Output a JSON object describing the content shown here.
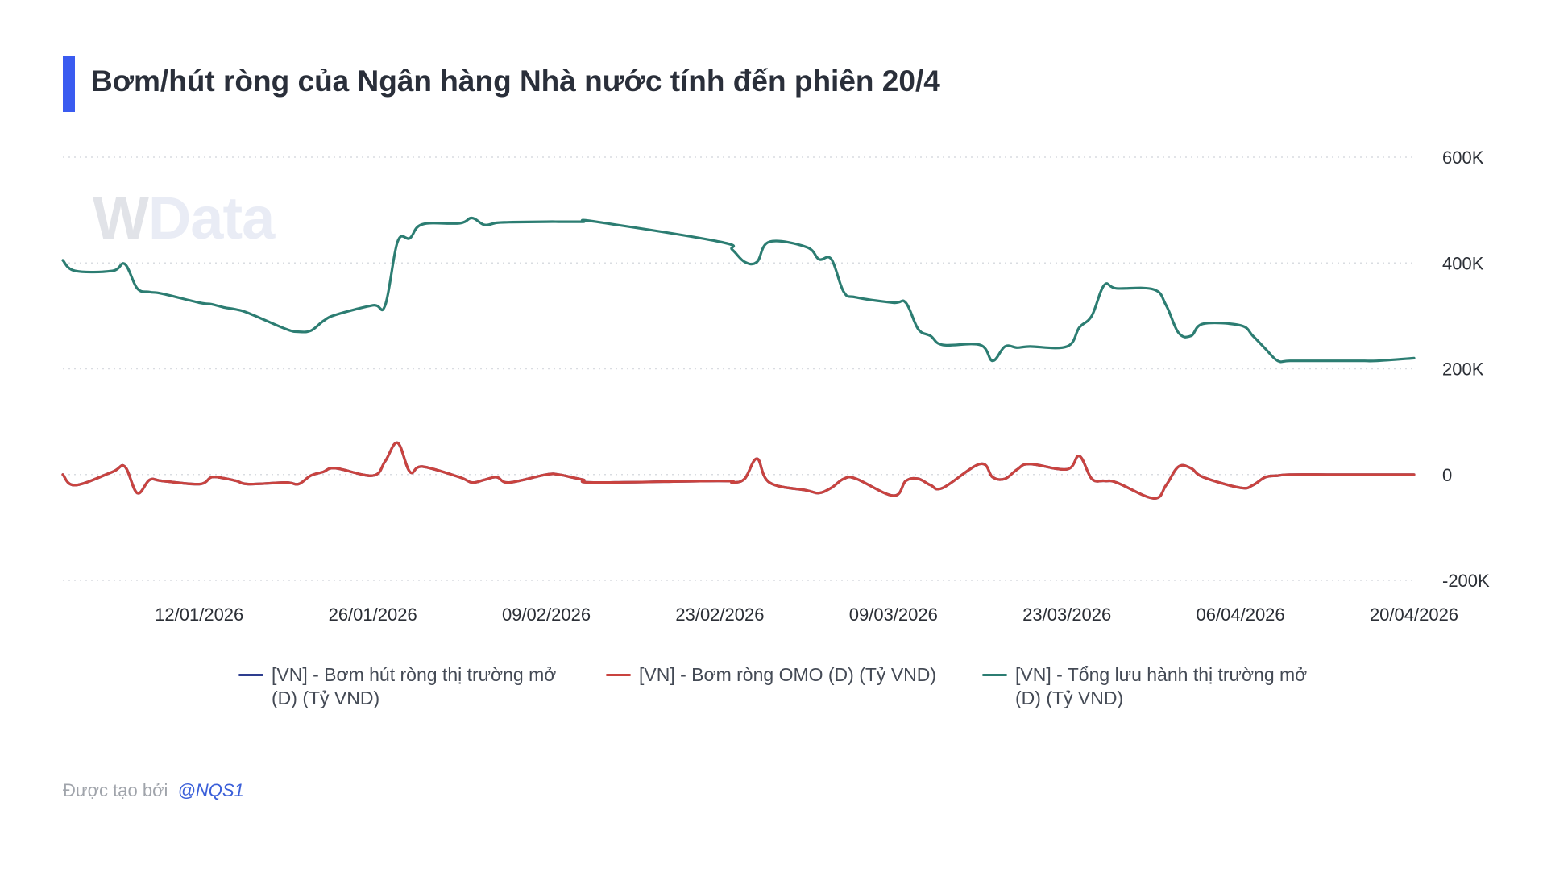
{
  "title": "Bơm/hút ròng của Ngân hàng Nhà nước tính đến phiên 20/4",
  "accent_color": "#3a5bf0",
  "watermark": {
    "w": "W",
    "rest": "Data"
  },
  "footer": {
    "prefix": "Được tạo bởi",
    "handle": "@NQS1"
  },
  "legend": [
    {
      "line1": "[VN] - Bơm hút ròng thị trường mở",
      "line2": "(D) (Tỷ VND)",
      "color": "#2e3e8f"
    },
    {
      "line1": "[VN] - Bơm ròng OMO (D) (Tỷ VND)",
      "line2": "",
      "color": "#c9433f"
    },
    {
      "line1": "[VN] - Tổng lưu hành thị trường mở",
      "line2": "(D) (Tỷ VND)",
      "color": "#2c7d72"
    }
  ],
  "chart_data": {
    "type": "line",
    "title": "Bơm/hút ròng của Ngân hàng Nhà nước tính đến phiên 20/4",
    "xlabel": "",
    "ylabel": "",
    "grid": true,
    "legend_position": "bottom",
    "y_axis_side": "right",
    "ylim": [
      -200000,
      600000
    ],
    "y_ticks": [
      {
        "value": 600000,
        "label": "600K"
      },
      {
        "value": 400000,
        "label": "400K"
      },
      {
        "value": 200000,
        "label": "200K"
      },
      {
        "value": 0,
        "label": "0"
      },
      {
        "value": -200000,
        "label": "-200K"
      }
    ],
    "x_range": [
      "2026-01-01",
      "2026-04-20"
    ],
    "x_ticks": [
      {
        "date": "2026-01-12",
        "label": "12/01/2026"
      },
      {
        "date": "2026-01-26",
        "label": "26/01/2026"
      },
      {
        "date": "2026-02-09",
        "label": "09/02/2026"
      },
      {
        "date": "2026-02-23",
        "label": "23/02/2026"
      },
      {
        "date": "2026-03-09",
        "label": "09/03/2026"
      },
      {
        "date": "2026-03-23",
        "label": "23/03/2026"
      },
      {
        "date": "2026-04-06",
        "label": "06/04/2026"
      },
      {
        "date": "2026-04-20",
        "label": "20/04/2026"
      }
    ],
    "series": [
      {
        "name": "[VN] - Bơm hút ròng thị trường mở (D) (Tỷ VND)",
        "color": "#2e3e8f",
        "x": [
          "2026-01-01",
          "2026-01-02",
          "2026-01-05",
          "2026-01-06",
          "2026-01-07",
          "2026-01-08",
          "2026-01-09",
          "2026-01-12",
          "2026-01-13",
          "2026-01-14",
          "2026-01-15",
          "2026-01-16",
          "2026-01-19",
          "2026-01-20",
          "2026-01-21",
          "2026-01-22",
          "2026-01-23",
          "2026-01-26",
          "2026-01-27",
          "2026-01-28",
          "2026-01-29",
          "2026-01-30",
          "2026-02-02",
          "2026-02-03",
          "2026-02-04",
          "2026-02-05",
          "2026-02-06",
          "2026-02-09",
          "2026-02-10",
          "2026-02-11",
          "2026-02-12",
          "2026-02-13",
          "2026-02-23",
          "2026-02-24",
          "2026-02-25",
          "2026-02-26",
          "2026-02-27",
          "2026-03-02",
          "2026-03-03",
          "2026-03-04",
          "2026-03-05",
          "2026-03-06",
          "2026-03-09",
          "2026-03-10",
          "2026-03-11",
          "2026-03-12",
          "2026-03-13",
          "2026-03-16",
          "2026-03-17",
          "2026-03-18",
          "2026-03-19",
          "2026-03-20",
          "2026-03-23",
          "2026-03-24",
          "2026-03-25",
          "2026-03-26",
          "2026-03-27",
          "2026-03-30",
          "2026-03-31",
          "2026-04-01",
          "2026-04-02",
          "2026-04-03",
          "2026-04-06",
          "2026-04-07",
          "2026-04-08",
          "2026-04-09",
          "2026-04-10",
          "2026-04-13",
          "2026-04-14",
          "2026-04-15",
          "2026-04-16",
          "2026-04-17",
          "2026-04-20"
        ],
        "values": [
          0,
          -20000,
          5000,
          15000,
          -35000,
          -10000,
          -12000,
          -18000,
          -5000,
          -7000,
          -12000,
          -18000,
          -15000,
          -18000,
          -2000,
          5000,
          12000,
          -2000,
          25000,
          60000,
          5000,
          15000,
          -5000,
          -15000,
          -10000,
          -5000,
          -15000,
          0,
          0,
          -5000,
          -10000,
          -15000,
          -12000,
          -15000,
          -8000,
          30000,
          -15000,
          -30000,
          -35000,
          -25000,
          -8000,
          -8000,
          -40000,
          -12000,
          -8000,
          -20000,
          -25000,
          20000,
          -5000,
          -8000,
          10000,
          20000,
          10000,
          35000,
          -8000,
          -12000,
          -15000,
          -45000,
          -20000,
          15000,
          12000,
          -5000,
          -25000,
          -20000,
          -5000,
          -2000,
          0,
          0,
          0,
          0,
          0,
          0,
          0
        ]
      },
      {
        "name": "[VN] - Bơm ròng OMO (D) (Tỷ VND)",
        "color": "#c9433f",
        "x": [
          "2026-01-01",
          "2026-01-02",
          "2026-01-05",
          "2026-01-06",
          "2026-01-07",
          "2026-01-08",
          "2026-01-09",
          "2026-01-12",
          "2026-01-13",
          "2026-01-14",
          "2026-01-15",
          "2026-01-16",
          "2026-01-19",
          "2026-01-20",
          "2026-01-21",
          "2026-01-22",
          "2026-01-23",
          "2026-01-26",
          "2026-01-27",
          "2026-01-28",
          "2026-01-29",
          "2026-01-30",
          "2026-02-02",
          "2026-02-03",
          "2026-02-04",
          "2026-02-05",
          "2026-02-06",
          "2026-02-09",
          "2026-02-10",
          "2026-02-11",
          "2026-02-12",
          "2026-02-13",
          "2026-02-23",
          "2026-02-24",
          "2026-02-25",
          "2026-02-26",
          "2026-02-27",
          "2026-03-02",
          "2026-03-03",
          "2026-03-04",
          "2026-03-05",
          "2026-03-06",
          "2026-03-09",
          "2026-03-10",
          "2026-03-11",
          "2026-03-12",
          "2026-03-13",
          "2026-03-16",
          "2026-03-17",
          "2026-03-18",
          "2026-03-19",
          "2026-03-20",
          "2026-03-23",
          "2026-03-24",
          "2026-03-25",
          "2026-03-26",
          "2026-03-27",
          "2026-03-30",
          "2026-03-31",
          "2026-04-01",
          "2026-04-02",
          "2026-04-03",
          "2026-04-06",
          "2026-04-07",
          "2026-04-08",
          "2026-04-09",
          "2026-04-10",
          "2026-04-13",
          "2026-04-14",
          "2026-04-15",
          "2026-04-16",
          "2026-04-17",
          "2026-04-20"
        ],
        "values": [
          0,
          -20000,
          5000,
          15000,
          -35000,
          -10000,
          -12000,
          -18000,
          -5000,
          -7000,
          -12000,
          -18000,
          -15000,
          -18000,
          -2000,
          5000,
          12000,
          -2000,
          25000,
          60000,
          5000,
          15000,
          -5000,
          -15000,
          -10000,
          -5000,
          -15000,
          0,
          0,
          -5000,
          -10000,
          -15000,
          -12000,
          -15000,
          -8000,
          30000,
          -15000,
          -30000,
          -35000,
          -25000,
          -8000,
          -8000,
          -40000,
          -12000,
          -8000,
          -20000,
          -25000,
          20000,
          -5000,
          -8000,
          10000,
          20000,
          10000,
          35000,
          -8000,
          -12000,
          -15000,
          -45000,
          -20000,
          15000,
          12000,
          -5000,
          -25000,
          -20000,
          -5000,
          -2000,
          0,
          0,
          0,
          0,
          0,
          0,
          0
        ]
      },
      {
        "name": "[VN] - Tổng lưu hành thị trường mở (D) (Tỷ VND)",
        "color": "#2c7d72",
        "x": [
          "2026-01-01",
          "2026-01-02",
          "2026-01-05",
          "2026-01-06",
          "2026-01-07",
          "2026-01-08",
          "2026-01-09",
          "2026-01-12",
          "2026-01-13",
          "2026-01-14",
          "2026-01-15",
          "2026-01-16",
          "2026-01-19",
          "2026-01-20",
          "2026-01-21",
          "2026-01-22",
          "2026-01-23",
          "2026-01-26",
          "2026-01-27",
          "2026-01-28",
          "2026-01-29",
          "2026-01-30",
          "2026-02-02",
          "2026-02-03",
          "2026-02-04",
          "2026-02-05",
          "2026-02-06",
          "2026-02-09",
          "2026-02-10",
          "2026-02-11",
          "2026-02-12",
          "2026-02-13",
          "2026-02-23",
          "2026-02-24",
          "2026-02-25",
          "2026-02-26",
          "2026-02-27",
          "2026-03-02",
          "2026-03-03",
          "2026-03-04",
          "2026-03-05",
          "2026-03-06",
          "2026-03-09",
          "2026-03-10",
          "2026-03-11",
          "2026-03-12",
          "2026-03-13",
          "2026-03-16",
          "2026-03-17",
          "2026-03-18",
          "2026-03-19",
          "2026-03-20",
          "2026-03-23",
          "2026-03-24",
          "2026-03-25",
          "2026-03-26",
          "2026-03-27",
          "2026-03-30",
          "2026-03-31",
          "2026-04-01",
          "2026-04-02",
          "2026-04-03",
          "2026-04-06",
          "2026-04-07",
          "2026-04-08",
          "2026-04-09",
          "2026-04-10",
          "2026-04-13",
          "2026-04-14",
          "2026-04-15",
          "2026-04-16",
          "2026-04-17",
          "2026-04-20"
        ],
        "values": [
          405000,
          385000,
          385000,
          398000,
          352000,
          345000,
          342000,
          325000,
          322000,
          316000,
          312000,
          305000,
          275000,
          270000,
          272000,
          290000,
          302000,
          320000,
          320000,
          440000,
          447000,
          473000,
          475000,
          485000,
          472000,
          476000,
          477000,
          478000,
          478000,
          478000,
          478000,
          478000,
          440000,
          425000,
          402000,
          402000,
          440000,
          430000,
          407000,
          407000,
          345000,
          335000,
          325000,
          325000,
          275000,
          262000,
          245000,
          245000,
          215000,
          242000,
          240000,
          242000,
          242000,
          278000,
          300000,
          358000,
          352000,
          350000,
          320000,
          268000,
          262000,
          285000,
          282000,
          262000,
          238000,
          215000,
          215000,
          215000,
          215000,
          215000,
          215000,
          215000,
          220000
        ]
      }
    ]
  }
}
